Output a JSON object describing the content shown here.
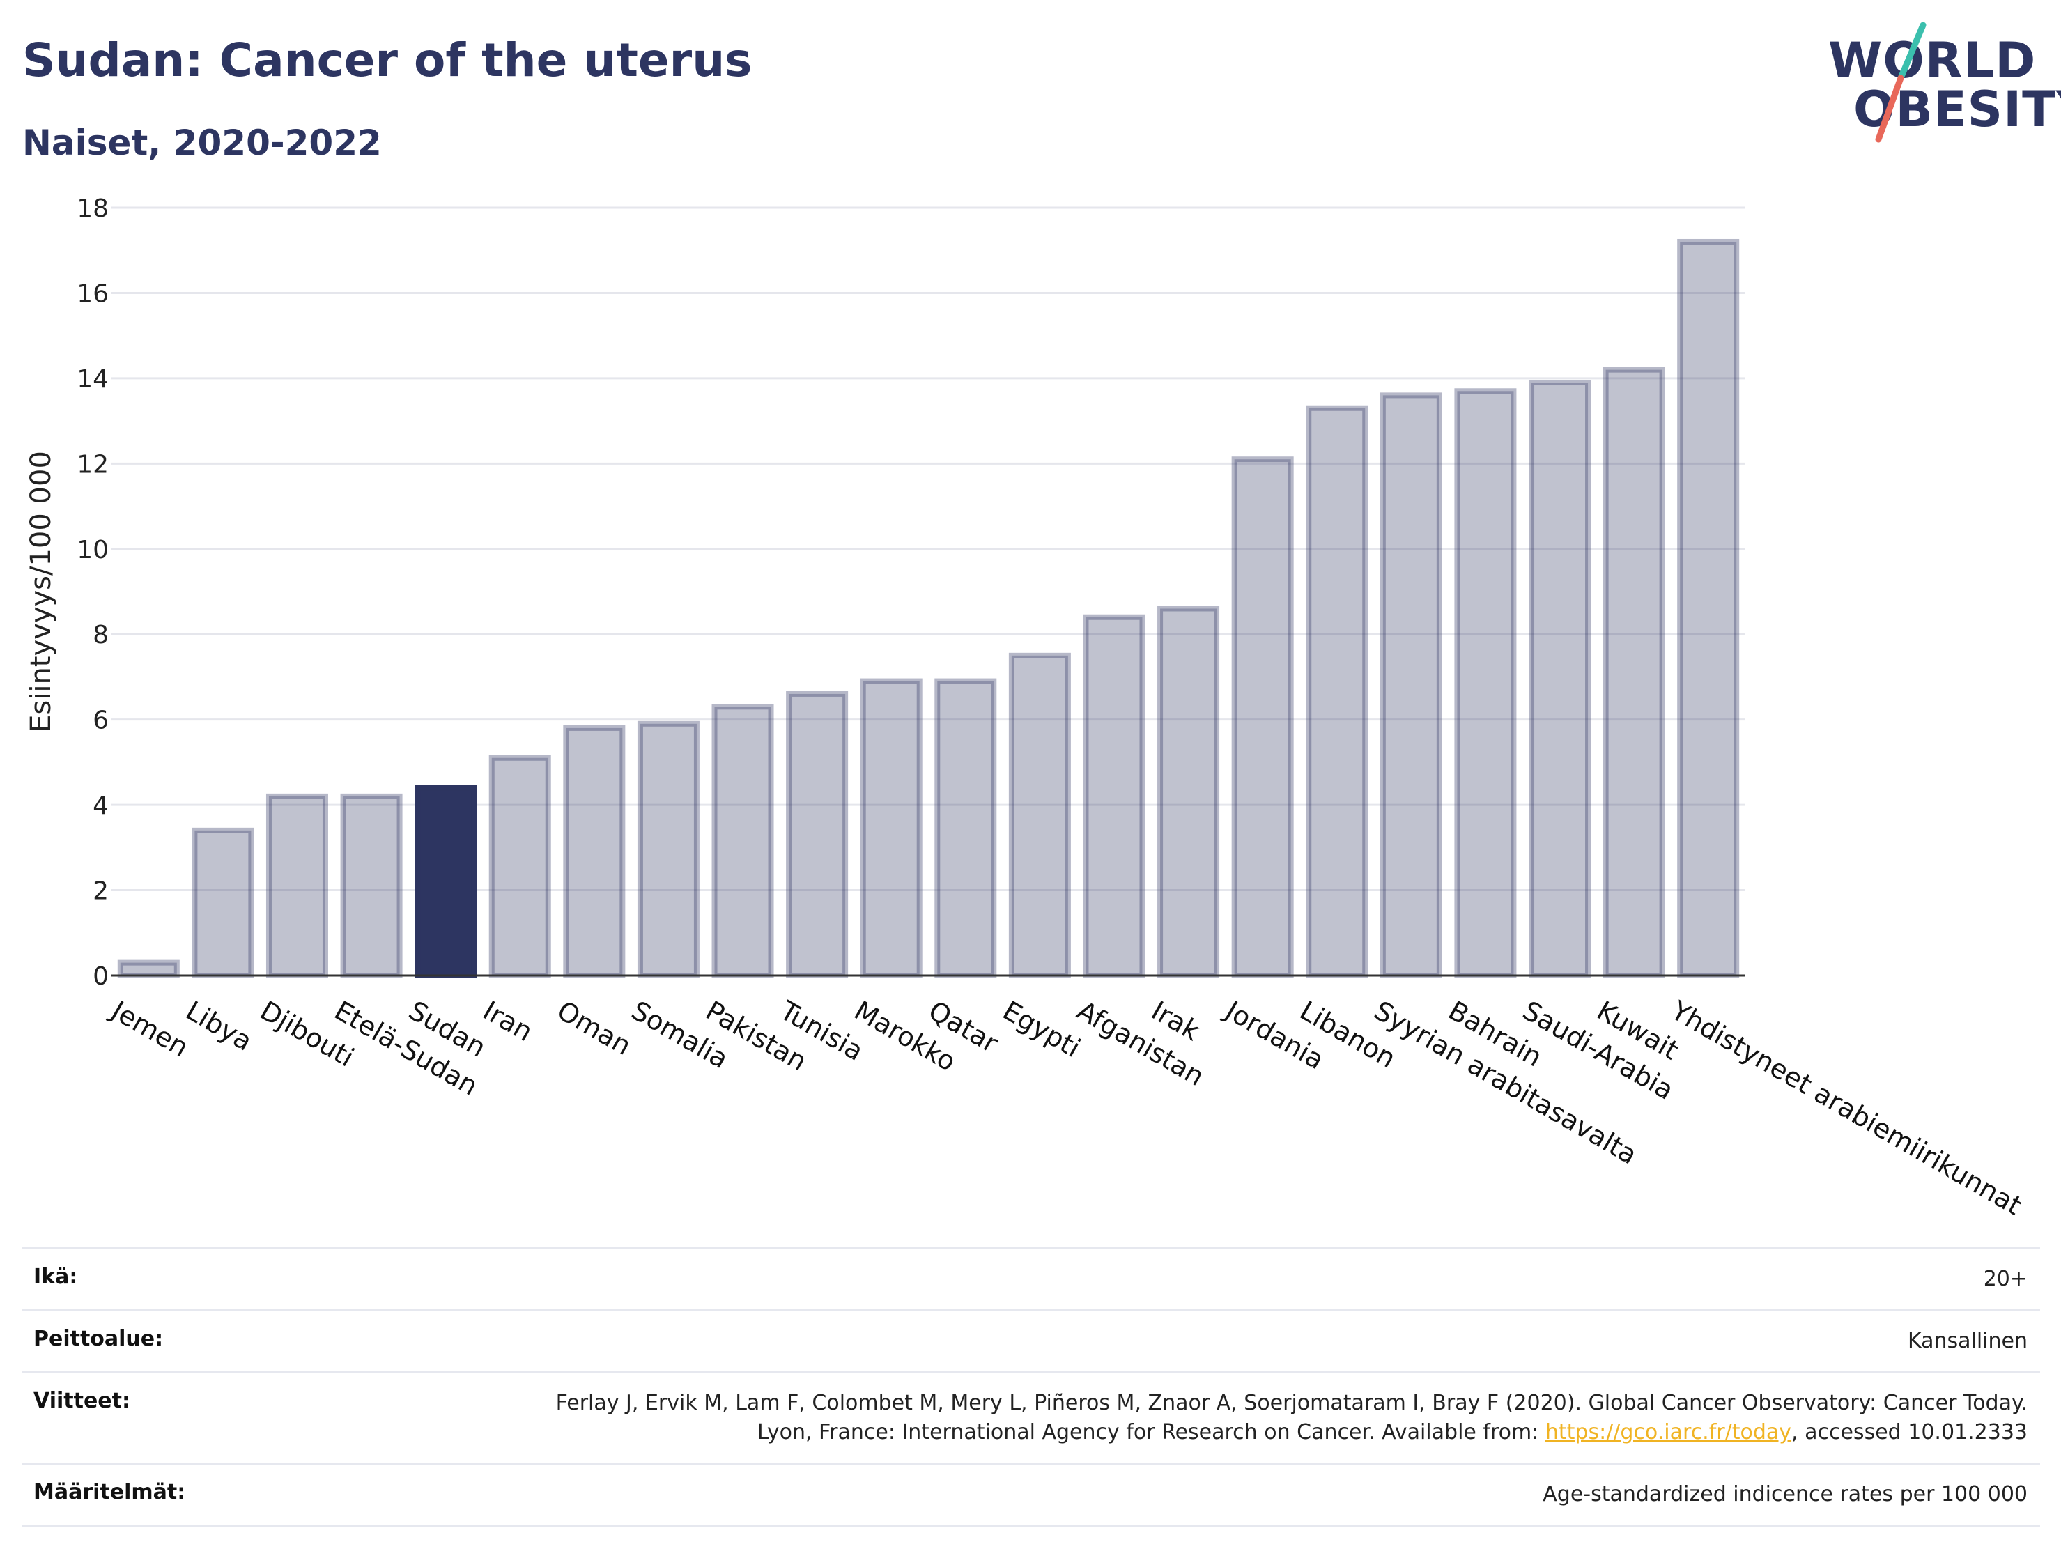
{
  "header": {
    "title": "Sudan: Cancer of the uterus",
    "subtitle": "Naiset, 2020-2022"
  },
  "logo": {
    "line1": "WORLD",
    "line2": "OBESITY",
    "slash_colors": [
      "#3bbfad",
      "#e8685a"
    ]
  },
  "chart_data": {
    "type": "bar",
    "ylabel": "Esiintyvyys/100 000",
    "xlabel": "",
    "ylim": [
      0,
      18
    ],
    "yticks": [
      0,
      2,
      4,
      6,
      8,
      10,
      12,
      14,
      16,
      18
    ],
    "grid": true,
    "highlight": "Sudan",
    "colors": {
      "bar": "#2d3561",
      "highlight": "#2d3561"
    },
    "categories": [
      "Jemen",
      "Libya",
      "Djibouti",
      "Etelä-Sudan",
      "Sudan",
      "Iran",
      "Oman",
      "Somalia",
      "Pakistan",
      "Tunisia",
      "Marokko",
      "Qatar",
      "Egypti",
      "Afganistan",
      "Irak",
      "Jordania",
      "Libanon",
      "Syyrian arabitasavalta",
      "Bahrain",
      "Saudi-Arabia",
      "Kuwait",
      "Yhdistyneet arabiemiirikunnat"
    ],
    "values": [
      0.3,
      3.4,
      4.2,
      4.2,
      4.4,
      5.1,
      5.8,
      5.9,
      6.3,
      6.6,
      6.9,
      6.9,
      7.5,
      8.4,
      8.6,
      12.1,
      13.3,
      13.6,
      13.7,
      13.9,
      14.2,
      17.2
    ]
  },
  "info": [
    {
      "label": "Ikä:",
      "value": "20+"
    },
    {
      "label": "Peittoalue:",
      "value": "Kansallinen"
    },
    {
      "label": "Viitteet:",
      "value_pre": "Ferlay J, Ervik M, Lam F, Colombet M, Mery L, Piñeros M, Znaor A, Soerjomataram I, Bray F (2020). Global Cancer Observatory: Cancer Today. Lyon, France: International Agency for Research on Cancer. Available from: ",
      "link": "https://gco.iarc.fr/today",
      "value_post": ", accessed 10.01.2333"
    },
    {
      "label": "Määritelmät:",
      "value": "Age-standardized indicence rates per 100 000"
    }
  ]
}
